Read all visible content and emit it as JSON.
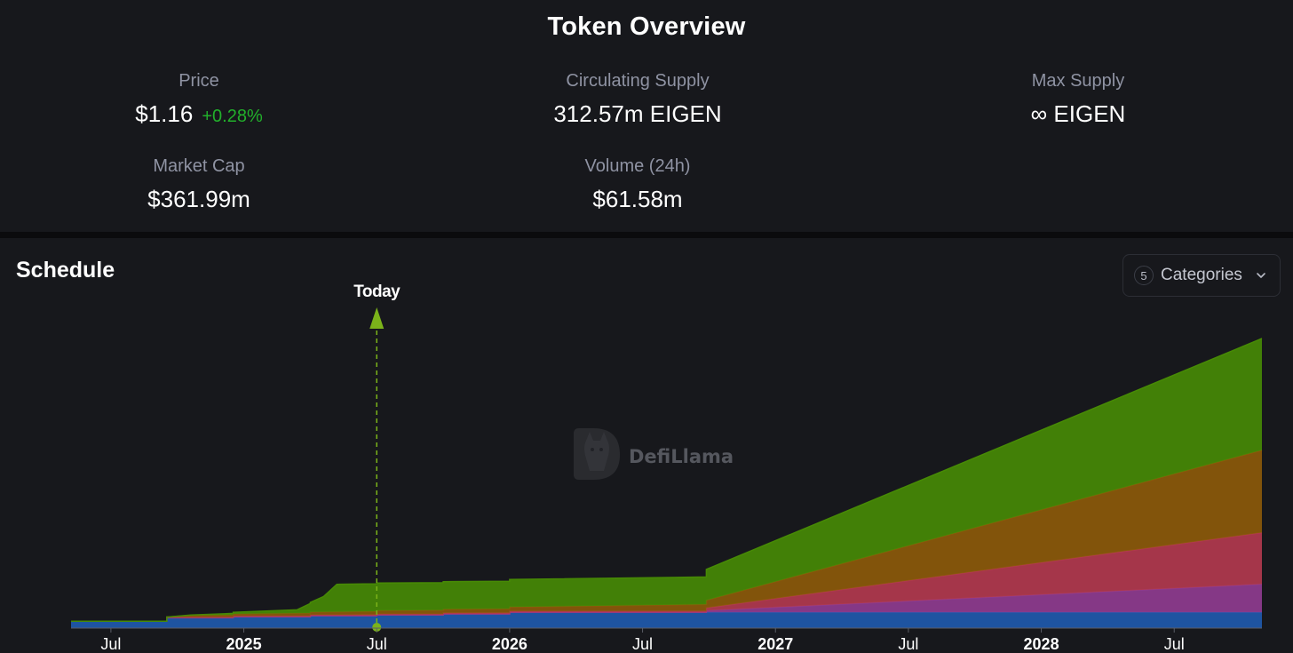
{
  "overview": {
    "title": "Token Overview",
    "price": {
      "label": "Price",
      "value": "$1.16",
      "change": "+0.28%"
    },
    "circulating": {
      "label": "Circulating Supply",
      "value": "312.57m EIGEN"
    },
    "max_supply": {
      "label": "Max Supply",
      "value": "∞ EIGEN"
    },
    "market_cap": {
      "label": "Market Cap",
      "value": "$361.99m"
    },
    "volume": {
      "label": "Volume (24h)",
      "value": "$61.58m"
    }
  },
  "schedule": {
    "title": "Schedule",
    "categories_count": "5",
    "categories_label": "Categories"
  },
  "colors": {
    "page_bg": "#17181c",
    "positive": "#22b02b",
    "series": [
      "#1f5aad",
      "#8f3c8f",
      "#b23a4e",
      "#8c5a0a",
      "#478a05"
    ],
    "today_marker": "#7bb31a"
  },
  "chart_data": {
    "type": "area",
    "stacked": true,
    "x_ticks": [
      "Jul",
      "2025",
      "Jul",
      "2026",
      "Jul",
      "2027",
      "Jul",
      "2028",
      "Jul"
    ],
    "x_ticks_bold": [
      false,
      true,
      false,
      true,
      false,
      true,
      false,
      true,
      false
    ],
    "today_label": "Today",
    "watermark": "DefiLlama",
    "x_range": [
      2024.35,
      2028.83
    ],
    "today_x": 2025.5,
    "y_axis_labels": false,
    "series": [
      {
        "color": "#1f5aad",
        "points": [
          [
            2024.35,
            20
          ],
          [
            2024.71,
            20
          ],
          [
            2024.71,
            30
          ],
          [
            2024.96,
            30
          ],
          [
            2024.96,
            33
          ],
          [
            2025.25,
            33
          ],
          [
            2025.25,
            36
          ],
          [
            2025.5,
            36
          ],
          [
            2025.5,
            38
          ],
          [
            2025.75,
            38
          ],
          [
            2025.75,
            41
          ],
          [
            2026.0,
            41
          ],
          [
            2026.0,
            46
          ],
          [
            2028.83,
            46
          ]
        ]
      },
      {
        "color": "#8f3c8f",
        "points": [
          [
            2024.35,
            0
          ],
          [
            2026.74,
            0
          ],
          [
            2026.74,
            5
          ],
          [
            2028.83,
            82
          ]
        ]
      },
      {
        "color": "#b23a4e",
        "points": [
          [
            2024.35,
            0
          ],
          [
            2024.71,
            0
          ],
          [
            2024.71,
            2
          ],
          [
            2025.5,
            3
          ],
          [
            2026.74,
            4
          ],
          [
            2026.74,
            8
          ],
          [
            2028.83,
            150
          ]
        ]
      },
      {
        "color": "#8c5a0a",
        "points": [
          [
            2024.35,
            0
          ],
          [
            2024.71,
            0
          ],
          [
            2024.8,
            5
          ],
          [
            2025.25,
            8
          ],
          [
            2025.5,
            10
          ],
          [
            2026.0,
            12
          ],
          [
            2026.74,
            19
          ],
          [
            2026.74,
            22
          ],
          [
            2028.83,
            240
          ]
        ]
      },
      {
        "color": "#478a05",
        "points": [
          [
            2024.35,
            0
          ],
          [
            2024.71,
            0
          ],
          [
            2024.8,
            1
          ],
          [
            2025.2,
            10
          ],
          [
            2025.25,
            28
          ],
          [
            2025.3,
            45
          ],
          [
            2025.35,
            80
          ],
          [
            2025.45,
            80
          ],
          [
            2025.5,
            80
          ],
          [
            2026.0,
            80
          ],
          [
            2026.74,
            80
          ],
          [
            2026.74,
            90
          ],
          [
            2028.83,
            325
          ]
        ]
      }
    ]
  }
}
